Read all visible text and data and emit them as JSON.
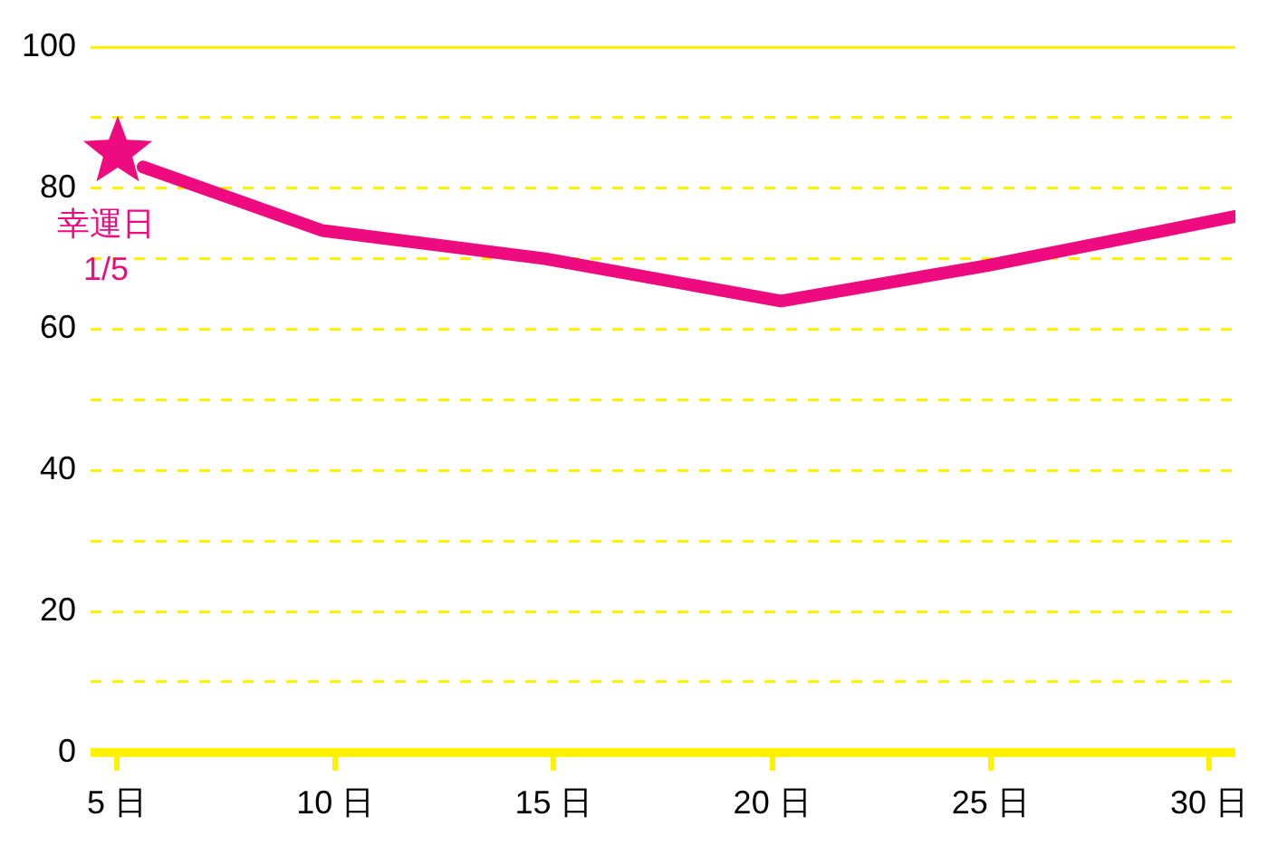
{
  "chart_data": {
    "type": "line",
    "x": [
      5.6,
      9.7,
      14.8,
      20.2,
      24.9,
      30.6
    ],
    "series": [
      {
        "color": "#ee0a7f",
        "values": [
          83,
          74,
          70,
          64,
          69,
          76
        ],
        "marker": "none",
        "line_style": "solid"
      }
    ],
    "xlim": [
      4.4,
      30.6
    ],
    "xticks": [
      {
        "value": 5,
        "label": "5 日"
      },
      {
        "value": 10,
        "label": "10 日"
      },
      {
        "value": 15,
        "label": "15 日"
      },
      {
        "value": 20,
        "label": "20 日"
      },
      {
        "value": 25,
        "label": "25 日"
      },
      {
        "value": 30,
        "label": "30 日"
      }
    ],
    "ylim": [
      0,
      100
    ],
    "yticks": [
      0,
      {
        "value": 10,
        "label": null
      },
      20,
      {
        "value": 30,
        "label": null
      },
      40,
      {
        "value": 50,
        "label": null
      },
      60,
      {
        "value": 70,
        "label": null
      },
      80,
      {
        "value": 90,
        "label": null
      },
      100
    ],
    "grid": "y",
    "legend": false,
    "annotations": [
      {
        "text": "幸運日 1/5",
        "x": 5,
        "y": 85
      }
    ]
  }
}
